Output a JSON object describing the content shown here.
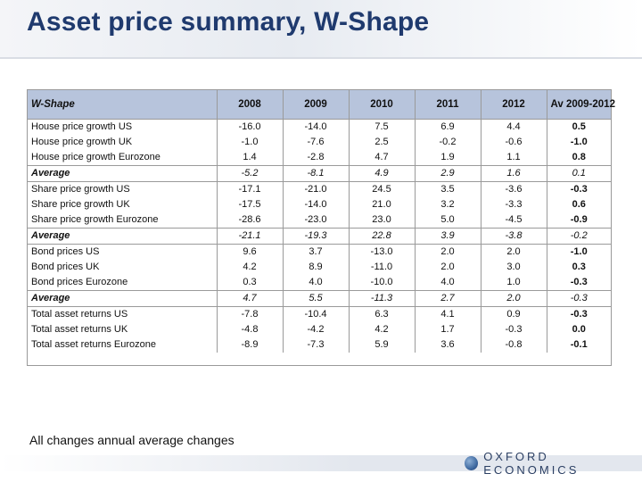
{
  "title": "Asset price summary, W-Shape",
  "table": {
    "corner_label": "W-Shape",
    "headers": [
      "2008",
      "2009",
      "2010",
      "2011",
      "2012",
      "Av 2009-2012"
    ],
    "rows": [
      {
        "label": "House price growth US",
        "values": [
          "-16.0",
          "-14.0",
          "7.5",
          "6.9",
          "4.4",
          "0.5"
        ],
        "average": false
      },
      {
        "label": "House price growth UK",
        "values": [
          "-1.0",
          "-7.6",
          "2.5",
          "-0.2",
          "-0.6",
          "-1.0"
        ],
        "average": false
      },
      {
        "label": "House price growth Eurozone",
        "values": [
          "1.4",
          "-2.8",
          "4.7",
          "1.9",
          "1.1",
          "0.8"
        ],
        "average": false
      },
      {
        "label": "Average",
        "values": [
          "-5.2",
          "-8.1",
          "4.9",
          "2.9",
          "1.6",
          "0.1"
        ],
        "average": true
      },
      {
        "label": "Share price growth US",
        "values": [
          "-17.1",
          "-21.0",
          "24.5",
          "3.5",
          "-3.6",
          "-0.3"
        ],
        "average": false
      },
      {
        "label": "Share price growth UK",
        "values": [
          "-17.5",
          "-14.0",
          "21.0",
          "3.2",
          "-3.3",
          "0.6"
        ],
        "average": false
      },
      {
        "label": "Share price growth Eurozone",
        "values": [
          "-28.6",
          "-23.0",
          "23.0",
          "5.0",
          "-4.5",
          "-0.9"
        ],
        "average": false
      },
      {
        "label": "Average",
        "values": [
          "-21.1",
          "-19.3",
          "22.8",
          "3.9",
          "-3.8",
          "-0.2"
        ],
        "average": true
      },
      {
        "label": "Bond prices US",
        "values": [
          "9.6",
          "3.7",
          "-13.0",
          "2.0",
          "2.0",
          "-1.0"
        ],
        "average": false
      },
      {
        "label": "Bond prices UK",
        "values": [
          "4.2",
          "8.9",
          "-11.0",
          "2.0",
          "3.0",
          "0.3"
        ],
        "average": false
      },
      {
        "label": "Bond prices Eurozone",
        "values": [
          "0.3",
          "4.0",
          "-10.0",
          "4.0",
          "1.0",
          "-0.3"
        ],
        "average": false
      },
      {
        "label": "Average",
        "values": [
          "4.7",
          "5.5",
          "-11.3",
          "2.7",
          "2.0",
          "-0.3"
        ],
        "average": true
      },
      {
        "label": "Total asset returns US",
        "values": [
          "-7.8",
          "-10.4",
          "6.3",
          "4.1",
          "0.9",
          "-0.3"
        ],
        "average": false
      },
      {
        "label": "Total asset returns UK",
        "values": [
          "-4.8",
          "-4.2",
          "4.2",
          "1.7",
          "-0.3",
          "0.0"
        ],
        "average": false
      },
      {
        "label": "Total asset returns Eurozone",
        "values": [
          "-8.9",
          "-7.3",
          "5.9",
          "3.6",
          "-0.8",
          "-0.1"
        ],
        "average": false
      }
    ]
  },
  "footnote": "All changes annual average changes",
  "logo": {
    "text": "OXFORD ECONOMICS",
    "icon": "globe-icon"
  },
  "colors": {
    "title": "#1f3a6e",
    "header_fill": "#b7c4dc",
    "border": "#9a9a9a"
  }
}
